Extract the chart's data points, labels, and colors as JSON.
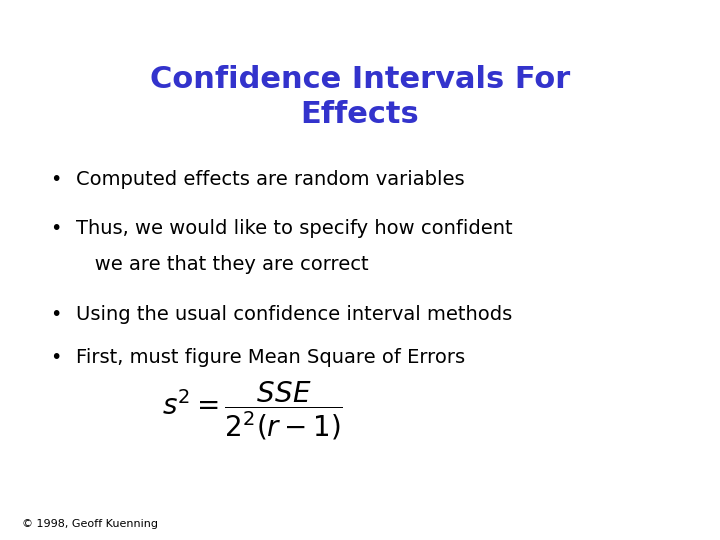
{
  "title_line1": "Confidence Intervals For",
  "title_line2": "Effects",
  "title_color": "#3333CC",
  "title_fontsize": 22,
  "bullet_color": "#000000",
  "bullet_fontsize": 14,
  "bullet_lines": [
    [
      "Computed effects are random variables"
    ],
    [
      "Thus, we would like to specify how confident",
      "   we are that they are correct"
    ],
    [
      "Using the usual confidence interval methods"
    ],
    [
      "First, must figure Mean Square of Errors"
    ]
  ],
  "formula": "$s^2 = \\dfrac{SSE}{2^2(r-1)}$",
  "formula_fontsize": 20,
  "copyright": "© 1998, Geoff Kuenning",
  "copyright_fontsize": 8,
  "background_color": "#FFFFFF"
}
